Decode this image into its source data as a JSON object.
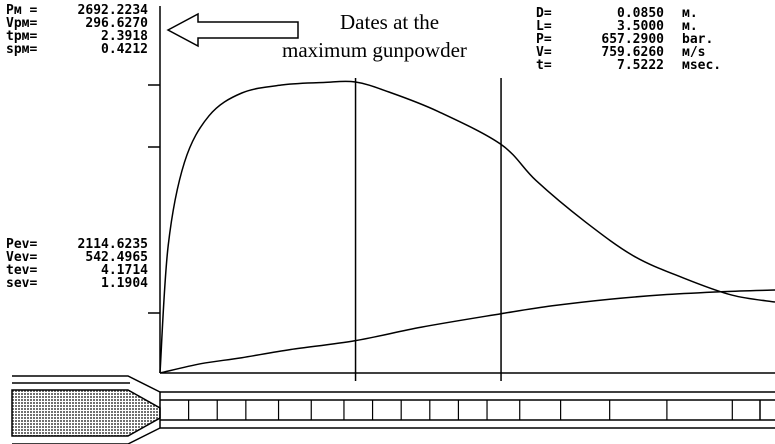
{
  "annotation": {
    "line1": "Dates at the",
    "line2": "maximum gunpowder"
  },
  "max_pressure_block": [
    {
      "label": "Pм =",
      "value": "2692.2234"
    },
    {
      "label": "Vpм=",
      "value": "296.6270"
    },
    {
      "label": "tpм=",
      "value": "2.3918"
    },
    {
      "label": "spм=",
      "value": "0.4212"
    }
  ],
  "exit_block": [
    {
      "label": "Pev=",
      "value": "2114.6235"
    },
    {
      "label": "Vev=",
      "value": "542.4965"
    },
    {
      "label": "tev=",
      "value": "4.1714"
    },
    {
      "label": "sev=",
      "value": "1.1904"
    }
  ],
  "params_block": [
    {
      "label": "D=",
      "value": "0.0850",
      "unit": "м."
    },
    {
      "label": "L=",
      "value": "3.5000",
      "unit": "м."
    },
    {
      "label": "P=",
      "value": "657.2900",
      "unit": "bar."
    },
    {
      "label": "V=",
      "value": "759.6260",
      "unit": "м/s"
    },
    {
      "label": "t=",
      "value": "7.5222",
      "unit": "мsec."
    }
  ],
  "chart_data": {
    "type": "line",
    "title": "",
    "xlabel": "",
    "ylabel": "",
    "grid": false,
    "x_unit": "msec",
    "xlim": [
      0,
      7.5222
    ],
    "markers": [
      {
        "x": 2.3918,
        "label": "tpм"
      },
      {
        "x": 4.1714,
        "label": "tev"
      }
    ],
    "series": [
      {
        "x": [
          0,
          0.1,
          0.3,
          0.6,
          1.0,
          1.5,
          2.0,
          2.3918,
          2.8,
          3.4,
          4.1714,
          4.6,
          5.2,
          5.8,
          6.4,
          7.0,
          7.5222
        ],
        "values": [
          0,
          1180,
          1950,
          2380,
          2590,
          2665,
          2688,
          2692.2234,
          2600,
          2420,
          2114.6235,
          1780,
          1400,
          1080,
          880,
          720,
          657.29
        ]
      },
      {
        "x": [
          0,
          0.5,
          1.0,
          1.6,
          2.3918,
          3.2,
          4.1714,
          4.8,
          5.5,
          6.2,
          6.9,
          7.5222
        ],
        "values": [
          0,
          85,
          140,
          215,
          296.627,
          420,
          542.4965,
          615,
          675,
          718,
          745,
          759.626
        ]
      }
    ]
  },
  "barrel": {
    "charge_fill": "#9a9a9a",
    "segment_boundaries_ms": [
      0.35,
      0.7,
      1.05,
      1.45,
      1.85,
      2.25,
      2.6,
      2.95,
      3.3,
      3.65,
      4.0,
      4.4,
      4.9,
      5.5,
      6.2,
      7.0
    ]
  }
}
